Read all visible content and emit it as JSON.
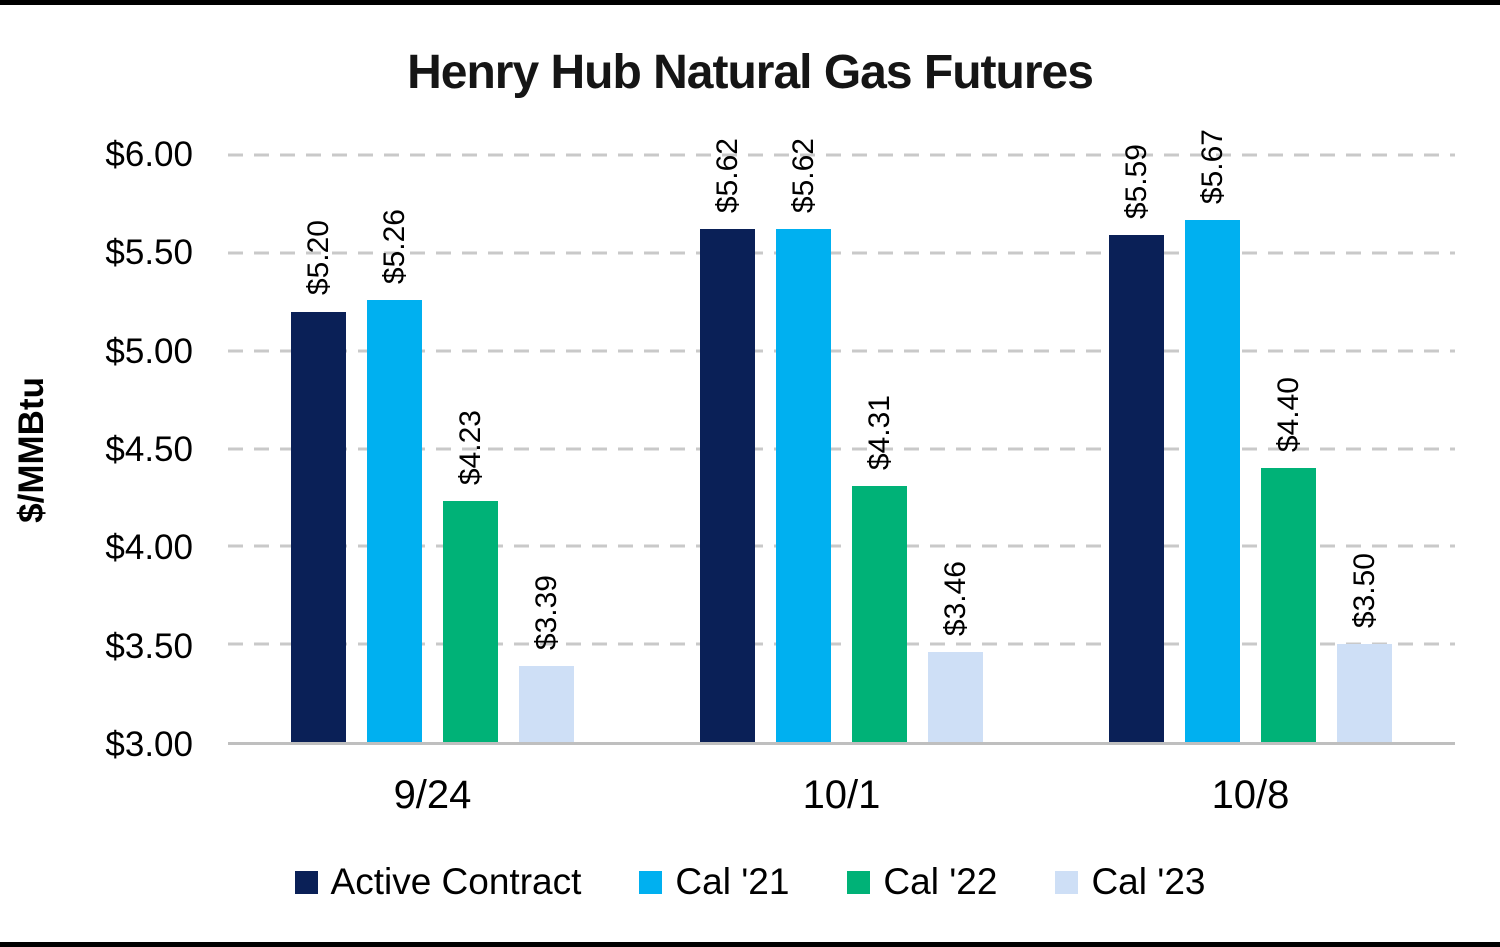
{
  "chart_data": {
    "type": "bar",
    "title": "Henry Hub Natural Gas Futures",
    "ylabel": "$/MMBtu",
    "xlabel": "",
    "ylim": [
      3.0,
      6.0
    ],
    "yticks": [
      3.0,
      3.5,
      4.0,
      4.5,
      5.0,
      5.5,
      6.0
    ],
    "ytick_labels": [
      "$3.00",
      "$3.50",
      "$4.00",
      "$4.50",
      "$5.00",
      "$5.50",
      "$6.00"
    ],
    "grid": true,
    "gridline_style": "dashed",
    "baseline": 3.0,
    "legend_position": "bottom",
    "categories": [
      "9/24",
      "10/1",
      "10/8"
    ],
    "series": [
      {
        "name": "Active Contract",
        "color": "#0A2057",
        "values": [
          5.2,
          5.62,
          5.59
        ],
        "labels": [
          "$5.20",
          "$5.62",
          "$5.59"
        ]
      },
      {
        "name": "Cal '21",
        "color": "#00B0F0",
        "values": [
          5.26,
          5.62,
          5.67
        ],
        "labels": [
          "$5.26",
          "$5.62",
          "$5.67"
        ]
      },
      {
        "name": "Cal '22",
        "color": "#00B277",
        "values": [
          4.23,
          4.31,
          4.4
        ],
        "labels": [
          "$4.23",
          "$4.31",
          "$4.40"
        ]
      },
      {
        "name": "Cal '23",
        "color": "#CEDFF6",
        "values": [
          3.39,
          3.46,
          3.5
        ],
        "labels": [
          "$3.39",
          "$3.46",
          "$3.50"
        ]
      }
    ]
  }
}
